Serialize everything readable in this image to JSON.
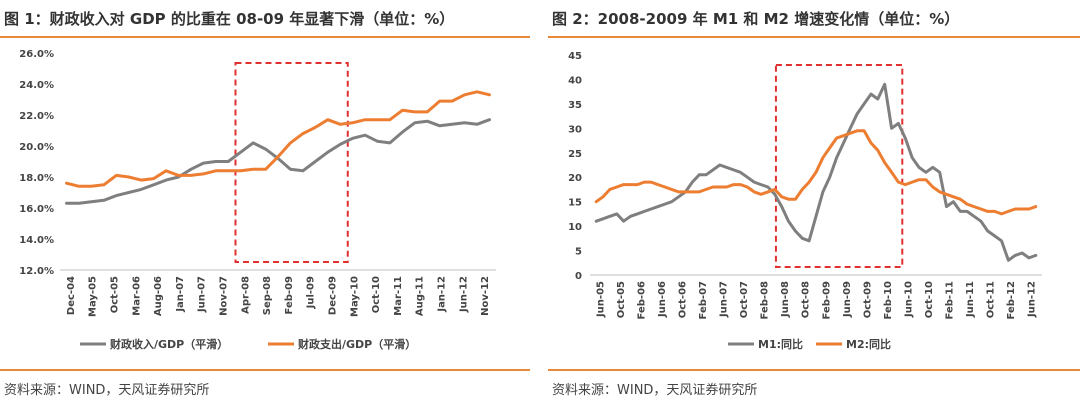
{
  "colors": {
    "gray": "#7f7f7f",
    "orange": "#ed7d31",
    "rule": "#e8893a",
    "highlight": "#e03030"
  },
  "charts": [
    {
      "title": "图 1：财政收入对 GDP 的比重在 08-09 年显著下滑（单位：%）",
      "source": "资料来源：WIND，天风证券研究所"
    },
    {
      "title": "图 2：2008-2009 年 M1 和 M2 增速变化情（单位：%）",
      "source": "资料来源：WIND，天风证券研究所"
    }
  ],
  "chart_data": [
    {
      "type": "line",
      "title": "图 1：财政收入对 GDP 的比重在 08-09 年显著下滑（单位：%）",
      "ylim": [
        12,
        26
      ],
      "yticks": [
        "12.0%",
        "14.0%",
        "16.0%",
        "18.0%",
        "20.0%",
        "22.0%",
        "24.0%",
        "26.0%"
      ],
      "xticks": [
        "Dec-04",
        "May-05",
        "Oct-05",
        "Mar-06",
        "Aug-06",
        "Jan-07",
        "Jun-07",
        "Nov-07",
        "Apr-08",
        "Sep-08",
        "Feb-09",
        "Jul-09",
        "Dec-09",
        "May-10",
        "Oct-10",
        "Mar-11",
        "Aug-11",
        "Jan-12",
        "Jun-12",
        "Nov-12"
      ],
      "highlight_range": [
        "Apr-08",
        "May-10"
      ],
      "series": [
        {
          "name": "财政收入/GDP（平滑）",
          "color": "gray",
          "values": [
            16.3,
            16.3,
            16.4,
            16.5,
            16.8,
            17.0,
            17.2,
            17.5,
            17.8,
            18.0,
            18.5,
            18.9,
            19.0,
            19.0,
            19.6,
            20.2,
            19.8,
            19.2,
            18.5,
            18.4,
            19.0,
            19.6,
            20.1,
            20.5,
            20.7,
            20.3,
            20.2,
            20.9,
            21.5,
            21.6,
            21.3,
            21.4,
            21.5,
            21.4,
            21.7
          ]
        },
        {
          "name": "财政支出/GDP（平滑）",
          "color": "orange",
          "values": [
            17.6,
            17.4,
            17.4,
            17.5,
            18.1,
            18.0,
            17.8,
            17.9,
            18.4,
            18.1,
            18.1,
            18.2,
            18.4,
            18.4,
            18.4,
            18.5,
            18.5,
            19.3,
            20.2,
            20.8,
            21.2,
            21.7,
            21.4,
            21.5,
            21.7,
            21.7,
            21.7,
            22.3,
            22.2,
            22.2,
            22.9,
            22.9,
            23.3,
            23.5,
            23.3
          ]
        }
      ]
    },
    {
      "type": "line",
      "title": "图 2：2008-2009 年 M1 和 M2 增速变化情（单位：%）",
      "ylim": [
        0,
        45
      ],
      "yticks": [
        "0",
        "5",
        "10",
        "15",
        "20",
        "25",
        "30",
        "35",
        "40",
        "45"
      ],
      "xticks": [
        "Jun-05",
        "Oct-05",
        "Feb-06",
        "Jun-06",
        "Oct-06",
        "Feb-07",
        "Jun-07",
        "Oct-07",
        "Feb-08",
        "Jun-08",
        "Oct-08",
        "Feb-09",
        "Jun-09",
        "Oct-09",
        "Feb-10",
        "Jun-10",
        "Oct-10",
        "Feb-11",
        "Jun-11",
        "Oct-11",
        "Feb-12",
        "Jun-12"
      ],
      "highlight_range": [
        "Jun-08",
        "Jun-10"
      ],
      "series": [
        {
          "name": "M1:同比",
          "color": "gray",
          "values": [
            11,
            11.5,
            12,
            12.5,
            11,
            12,
            12.5,
            13,
            13.5,
            14,
            14.5,
            15,
            16,
            17,
            19,
            20.5,
            20.5,
            21.5,
            22.5,
            22,
            21.5,
            21,
            20,
            19,
            18.5,
            18,
            16.5,
            14,
            11,
            9,
            7.5,
            7,
            12,
            17,
            20,
            24,
            27,
            30,
            33,
            35,
            37,
            36,
            39,
            30,
            31,
            28,
            24,
            22,
            21,
            22,
            21,
            14,
            15,
            13,
            13,
            12,
            11,
            9,
            8,
            7,
            3,
            4,
            4.5,
            3.5,
            4
          ]
        },
        {
          "name": "M2:同比",
          "color": "orange",
          "values": [
            15,
            16,
            17.5,
            18,
            18.5,
            18.5,
            18.5,
            19,
            19,
            18.5,
            18,
            17.5,
            17,
            17,
            17,
            17,
            17.5,
            18,
            18,
            18,
            18.5,
            18.5,
            18,
            17,
            16.5,
            17,
            17.5,
            16,
            15.5,
            15.5,
            17.5,
            19,
            21,
            24,
            26,
            28,
            28.5,
            29,
            29.5,
            29.5,
            27,
            25.5,
            23,
            21,
            19,
            18.5,
            19,
            19.5,
            19.5,
            18,
            17,
            16.5,
            16,
            15.5,
            14.5,
            14,
            13.5,
            13,
            13,
            12.5,
            13,
            13.5,
            13.5,
            13.5,
            14
          ]
        }
      ]
    }
  ]
}
